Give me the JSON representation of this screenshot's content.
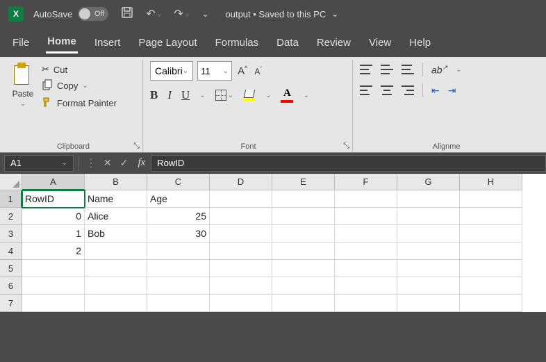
{
  "titlebar": {
    "autosave_label": "AutoSave",
    "autosave_state": "Off",
    "title": "output • Saved to this PC"
  },
  "tabs": [
    "File",
    "Home",
    "Insert",
    "Page Layout",
    "Formulas",
    "Data",
    "Review",
    "View",
    "Help"
  ],
  "active_tab": "Home",
  "ribbon": {
    "clipboard": {
      "paste": "Paste",
      "cut": "Cut",
      "copy": "Copy",
      "format_painter": "Format Painter",
      "label": "Clipboard"
    },
    "font": {
      "name": "Calibri",
      "size": "11",
      "label": "Font"
    },
    "alignment": {
      "label": "Alignme"
    }
  },
  "formula_bar": {
    "cell_ref": "A1",
    "value": "RowID"
  },
  "grid": {
    "columns": [
      "A",
      "B",
      "C",
      "D",
      "E",
      "F",
      "G",
      "H"
    ],
    "active_col": "A",
    "active_row": 1,
    "rows": [
      {
        "n": 1,
        "cells": [
          {
            "v": "RowID",
            "a": "left",
            "sel": true
          },
          {
            "v": "Name",
            "a": "left"
          },
          {
            "v": "Age",
            "a": "left"
          },
          {
            "v": ""
          },
          {
            "v": ""
          },
          {
            "v": ""
          },
          {
            "v": ""
          },
          {
            "v": ""
          }
        ]
      },
      {
        "n": 2,
        "cells": [
          {
            "v": "0",
            "a": "right"
          },
          {
            "v": "Alice",
            "a": "left"
          },
          {
            "v": "25",
            "a": "right"
          },
          {
            "v": ""
          },
          {
            "v": ""
          },
          {
            "v": ""
          },
          {
            "v": ""
          },
          {
            "v": ""
          }
        ]
      },
      {
        "n": 3,
        "cells": [
          {
            "v": "1",
            "a": "right"
          },
          {
            "v": "Bob",
            "a": "left"
          },
          {
            "v": "30",
            "a": "right"
          },
          {
            "v": ""
          },
          {
            "v": ""
          },
          {
            "v": ""
          },
          {
            "v": ""
          },
          {
            "v": ""
          }
        ]
      },
      {
        "n": 4,
        "cells": [
          {
            "v": "2",
            "a": "right"
          },
          {
            "v": ""
          },
          {
            "v": ""
          },
          {
            "v": ""
          },
          {
            "v": ""
          },
          {
            "v": ""
          },
          {
            "v": ""
          },
          {
            "v": ""
          }
        ]
      },
      {
        "n": 5,
        "cells": [
          {
            "v": ""
          },
          {
            "v": ""
          },
          {
            "v": ""
          },
          {
            "v": ""
          },
          {
            "v": ""
          },
          {
            "v": ""
          },
          {
            "v": ""
          },
          {
            "v": ""
          }
        ]
      },
      {
        "n": 6,
        "cells": [
          {
            "v": ""
          },
          {
            "v": ""
          },
          {
            "v": ""
          },
          {
            "v": ""
          },
          {
            "v": ""
          },
          {
            "v": ""
          },
          {
            "v": ""
          },
          {
            "v": ""
          }
        ]
      },
      {
        "n": 7,
        "cells": [
          {
            "v": ""
          },
          {
            "v": ""
          },
          {
            "v": ""
          },
          {
            "v": ""
          },
          {
            "v": ""
          },
          {
            "v": ""
          },
          {
            "v": ""
          },
          {
            "v": ""
          }
        ]
      }
    ]
  },
  "colors": {
    "excel_green": "#107c41",
    "ribbon_bg": "#e6e6e6",
    "chrome_bg": "#4a4a4a",
    "fill_highlight": "#ffff00",
    "font_color": "#ff0000"
  }
}
